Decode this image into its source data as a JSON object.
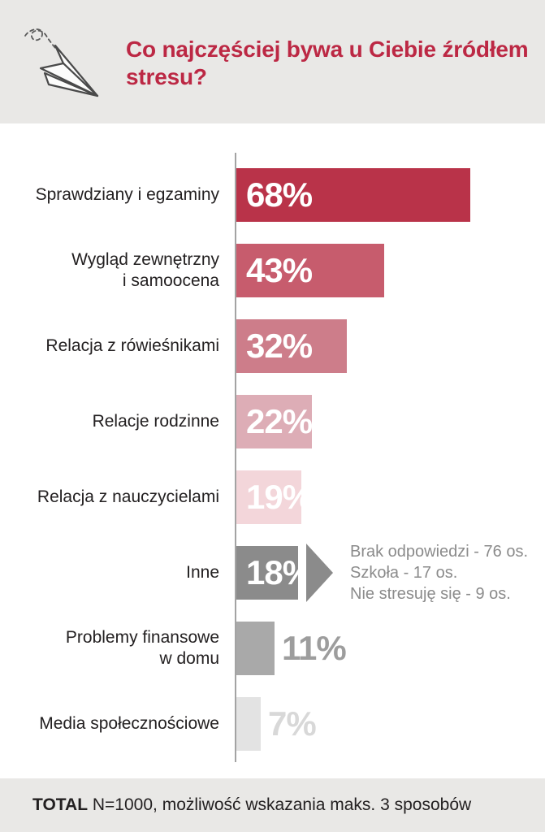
{
  "header": {
    "title": "Co najczęściej bywa u Ciebie źródłem stresu?",
    "icon": "paper-plane-doodle-icon"
  },
  "footer": {
    "bold": "TOTAL",
    "text": " N=1000, możliwość wskazania maks. 3 sposobów"
  },
  "colors": {
    "band_background": "#e9e8e6",
    "title_red": "#bc2844",
    "label_text": "#232021",
    "axis_line": "#a3a3a3",
    "annotation_gray": "#8b8b8b"
  },
  "chart_data": {
    "type": "bar",
    "orientation": "horizontal",
    "unit": "%",
    "title": "Co najczęściej bywa u Ciebie źródłem stresu?",
    "xlabel": "",
    "ylabel": "",
    "xlim": [
      0,
      87
    ],
    "grid": false,
    "legend": false,
    "axis_style": "single vertical baseline at left, no ticks, no gridlines",
    "categories": [
      "Sprawdziany i egzaminy",
      "Wygląd zewnętrzny i samoocena",
      "Relacja z rówieśnikami",
      "Relacje rodzinne",
      "Relacja z nauczycielami",
      "Inne",
      "Problemy finansowe w domu",
      "Media społecznościowe"
    ],
    "values": [
      68,
      43,
      32,
      22,
      19,
      18,
      11,
      7
    ],
    "series": [
      {
        "label": "Sprawdziany i egzaminy",
        "value": 68,
        "display": "68%",
        "bar_color": "#b93349",
        "value_color": "#ffffff",
        "value_inside": true
      },
      {
        "label": "Wygląd zewnętrzny\ni samoocena",
        "value": 43,
        "display": "43%",
        "bar_color": "#c75c6d",
        "value_color": "#ffffff",
        "value_inside": true
      },
      {
        "label": "Relacja z rówieśnikami",
        "value": 32,
        "display": "32%",
        "bar_color": "#cd7d8a",
        "value_color": "#ffffff",
        "value_inside": true
      },
      {
        "label": "Relacje rodzinne",
        "value": 22,
        "display": "22%",
        "bar_color": "#ddadb6",
        "value_color": "#ffffff",
        "value_inside": true
      },
      {
        "label": "Relacja z nauczycielami",
        "value": 19,
        "display": "19%",
        "bar_color": "#f3d6da",
        "value_color": "#ffffff",
        "value_inside": true
      },
      {
        "label": "Inne",
        "value": 18,
        "display": "18%",
        "bar_color": "#8b8b8b",
        "value_color": "#ffffff",
        "value_inside": true,
        "annotation": {
          "arrow_color": "#8b8b8b",
          "text_color": "#8b8b8b",
          "lines": [
            "Brak odpowiedzi - 76 os.",
            "Szkoła - 17 os.",
            "Nie stresuję się - 9 os."
          ]
        }
      },
      {
        "label": "Problemy finansowe\nw domu",
        "value": 11,
        "display": "11%",
        "bar_color": "#a9a9a9",
        "value_color": "#9d9d9d",
        "value_inside": false
      },
      {
        "label": "Media społecznościowe",
        "value": 7,
        "display": "7%",
        "bar_color": "#e3e3e3",
        "value_color": "#d8d8d8",
        "value_inside": false
      }
    ],
    "footnote": "TOTAL N=1000, możliwość wskazania maks. 3 sposobów"
  }
}
